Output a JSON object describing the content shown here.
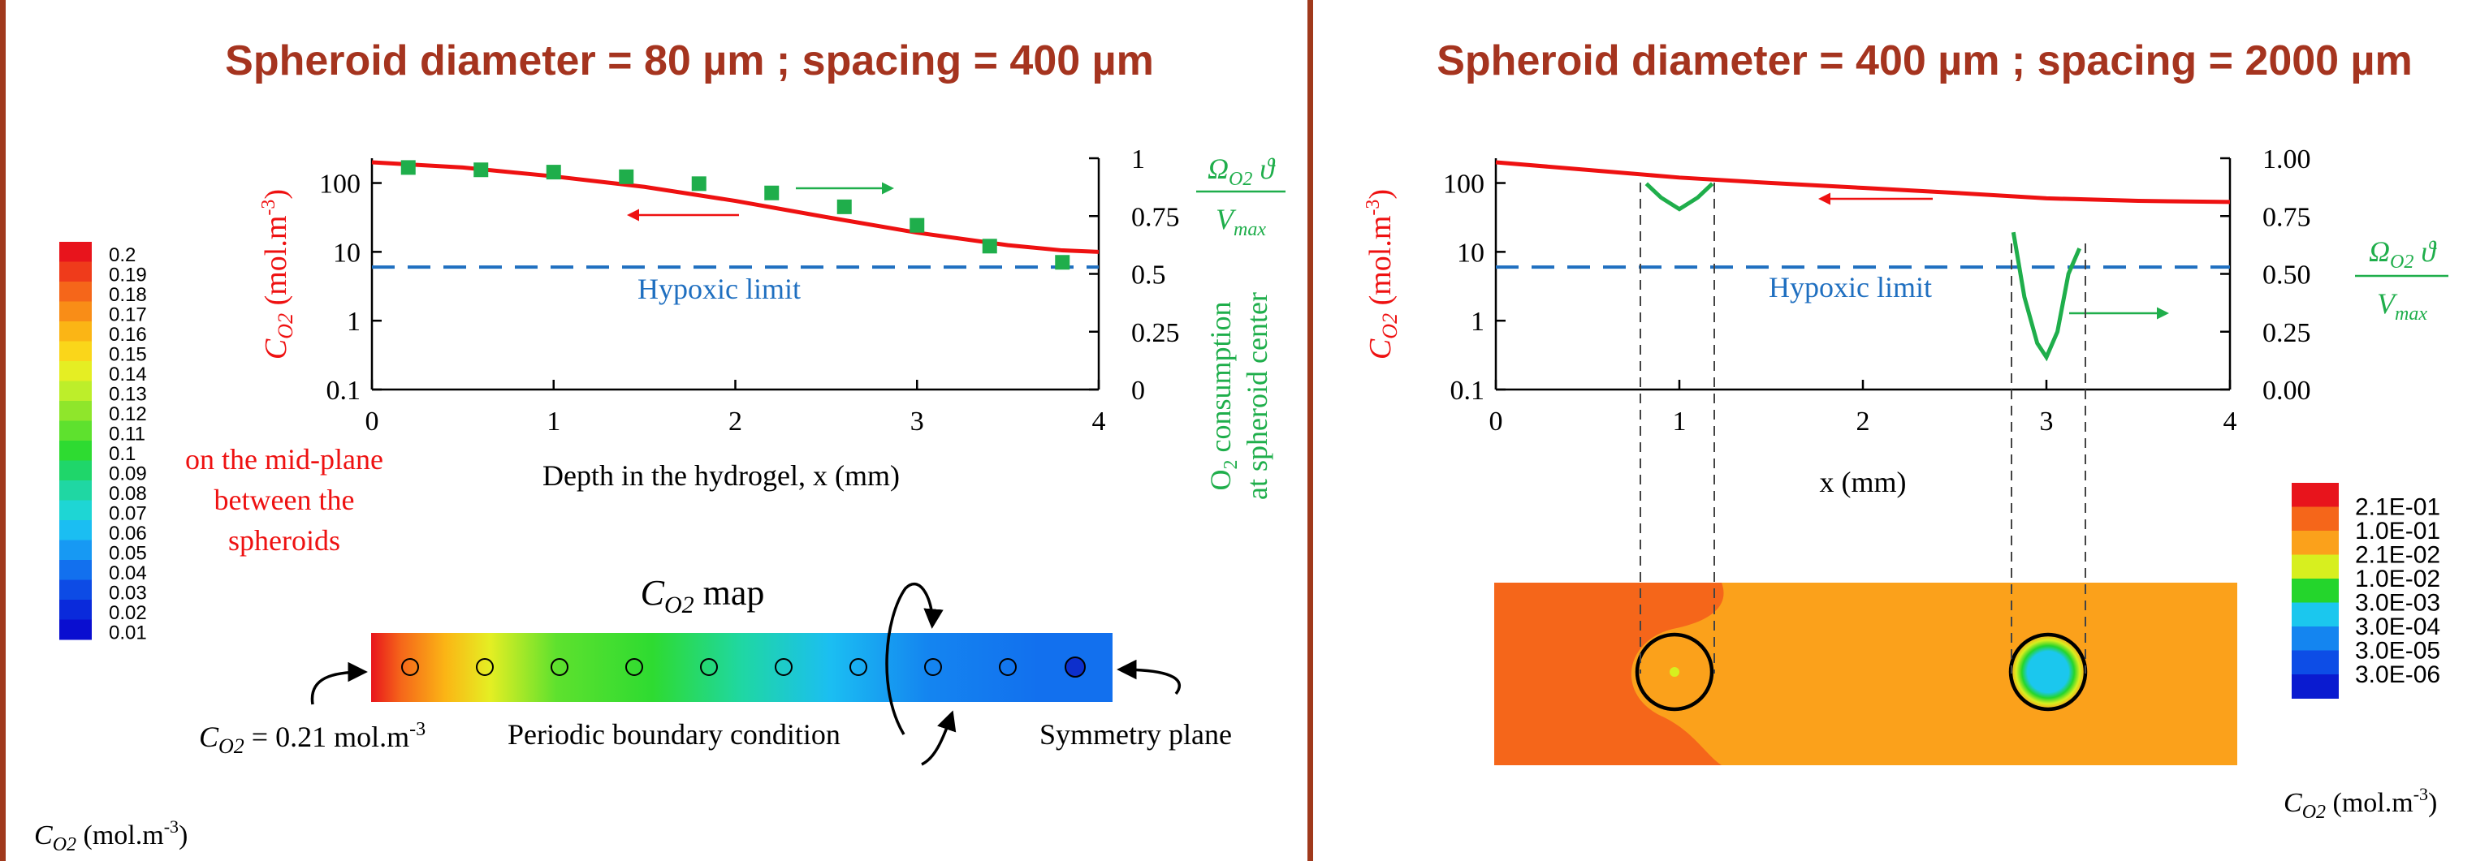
{
  "colors": {
    "title": "#a5341f",
    "divider": "#a0391c",
    "red_curve": "#ee1111",
    "green": "#1fae4b",
    "hypoxic_line": "#1f6fc0",
    "hypoxic_text": "#1f6fc0"
  },
  "left_panel": {
    "title": "Spheroid diameter = 80 µm ; spacing = 400 µm",
    "y_label_main": "C",
    "y_label_sub": "O2",
    "y_label_unit": " (mol.m",
    "y_label_exp": "-3",
    "y_label_close": ")",
    "x_label": "Depth in the hydrogel, x (mm)",
    "right_label_omega": "Ω",
    "right_label_omega_sub": "O2",
    "right_label_theta": " ϑ",
    "right_label_vmax": "V",
    "right_label_vmax_sub": "max",
    "o2_consumption_line1": "O",
    "o2_consumption_sub": "2",
    "o2_consumption_rest": " consumption",
    "o2_consumption_line2": "at spheroid center",
    "hypoxic_limit": "Hypoxic limit",
    "mid_plane_1": "on the mid-plane",
    "mid_plane_2": "between the",
    "mid_plane_3": "spheroids",
    "map_title_main": "C",
    "map_title_sub": "O2",
    "map_title_rest": " map",
    "boundary_c_main": "C",
    "boundary_c_sub": "O2",
    "boundary_c_rest": " = 0.21 mol.m",
    "boundary_c_exp": "-3",
    "periodic_boundary": "Periodic boundary condition",
    "symmetry_plane": "Symmetry plane",
    "colorbar_ticks": [
      "0.2",
      "0.19",
      "0.18",
      "0.17",
      "0.16",
      "0.15",
      "0.14",
      "0.13",
      "0.12",
      "0.11",
      "0.1",
      "0.09",
      "0.08",
      "0.07",
      "0.06",
      "0.05",
      "0.04",
      "0.03",
      "0.02",
      "0.01"
    ],
    "colorbar_colors": [
      "#e8141c",
      "#ef3b1b",
      "#f5661a",
      "#f98d17",
      "#fbb515",
      "#fad61a",
      "#e5ee23",
      "#bdee2a",
      "#8fe62b",
      "#5ee12e",
      "#2edb31",
      "#1fd66a",
      "#1fd7a3",
      "#1ed6d4",
      "#1bbef2",
      "#1799f3",
      "#1270ee",
      "#0d4be5",
      "#0a2adb",
      "#0a0ed0"
    ],
    "colorbar_label_main": "C",
    "colorbar_label_sub": "O2",
    "colorbar_label_rest": " (mol.m",
    "colorbar_label_exp": "-3",
    "colorbar_label_close": ")"
  },
  "right_panel": {
    "title": "Spheroid diameter = 400 µm ; spacing = 2000 µm",
    "y_label_main": "C",
    "y_label_sub": "O2",
    "y_label_unit": " (mol.m",
    "y_label_exp": "-3",
    "y_label_close": ")",
    "x_label": "x (mm)",
    "right_label_omega": "Ω",
    "right_label_omega_sub": "O2",
    "right_label_theta": " ϑ",
    "right_label_vmax": "V",
    "right_label_vmax_sub": "max",
    "hypoxic_limit": "Hypoxic limit",
    "colorbar_ticks": [
      "2.1E-01",
      "1.0E-01",
      "2.1E-02",
      "1.0E-02",
      "3.0E-03",
      "3.0E-04",
      "3.0E-05",
      "3.0E-06"
    ],
    "colorbar_colors": [
      "#e8141c",
      "#f5661a",
      "#fba11b",
      "#d7ef1f",
      "#24d52c",
      "#1bc7ee",
      "#1485f0",
      "#0d4de6",
      "#0a1bd0"
    ],
    "colorbar_label_main": "C",
    "colorbar_label_sub": "O2",
    "colorbar_label_rest": " (mol.m",
    "colorbar_label_exp": "-3",
    "colorbar_label_close": ")"
  },
  "chart_data": [
    {
      "type": "line",
      "title": "Spheroid diameter = 80 µm ; spacing = 400 µm",
      "xlabel": "Depth in the hydrogel, x (mm)",
      "ylabel": "C_O2 (mol.m-3)",
      "y2label": "Ω_O2 ϑ / V_max — O2 consumption at spheroid center",
      "xlim": [
        0,
        4
      ],
      "ylim": [
        0.1,
        200
      ],
      "yscale": "log",
      "y2lim": [
        0,
        1
      ],
      "x_ticks": [
        "0",
        "1",
        "2",
        "3",
        "4"
      ],
      "y_ticks": [
        "0.1",
        "1",
        "10",
        "100"
      ],
      "y2_ticks": [
        "0",
        "0.25",
        "0.5",
        "0.75",
        "1"
      ],
      "series": [
        {
          "axis": "left",
          "color": "#ee1111",
          "x": [
            0,
            0.5,
            1.0,
            1.5,
            2.0,
            2.5,
            3.0,
            3.5,
            3.8,
            4.0
          ],
          "values": [
            200,
            168,
            125,
            88,
            55,
            32,
            19,
            12.5,
            10.5,
            10
          ]
        },
        {
          "axis": "right",
          "marker": "square",
          "color": "#1fae4b",
          "x": [
            0.2,
            0.6,
            1.0,
            1.4,
            1.8,
            2.2,
            2.6,
            3.0,
            3.4,
            3.8
          ],
          "values": [
            0.96,
            0.95,
            0.94,
            0.92,
            0.89,
            0.85,
            0.79,
            0.71,
            0.62,
            0.55
          ]
        },
        {
          "name": "Hypoxic limit",
          "axis": "left",
          "dashed": true,
          "color": "#1f6fc0",
          "x": [
            0,
            4
          ],
          "values": [
            6,
            6
          ]
        }
      ]
    },
    {
      "type": "line",
      "title": "Spheroid diameter = 400 µm ; spacing = 2000 µm",
      "xlabel": "x (mm)",
      "ylabel": "C_O2 (mol.m-3)",
      "y2label": "Ω_O2 ϑ / V_max",
      "xlim": [
        0,
        4
      ],
      "ylim": [
        0.1,
        200
      ],
      "yscale": "log",
      "y2lim": [
        0,
        1
      ],
      "x_ticks": [
        "0",
        "1",
        "2",
        "3",
        "4"
      ],
      "y_ticks": [
        "0.1",
        "1",
        "10",
        "100"
      ],
      "y2_ticks": [
        "0.00",
        "0.25",
        "0.50",
        "0.75",
        "1.00"
      ],
      "series": [
        {
          "axis": "left",
          "color": "#ee1111",
          "x": [
            0,
            0.5,
            1.0,
            1.5,
            2.0,
            2.5,
            3.0,
            3.5,
            4.0
          ],
          "values": [
            200,
            155,
            120,
            100,
            85,
            72,
            60,
            55,
            53
          ]
        },
        {
          "axis": "right",
          "color": "#1fae4b",
          "x": [
            0.82,
            0.9,
            1.0,
            1.1,
            1.18
          ],
          "values": [
            0.89,
            0.83,
            0.78,
            0.83,
            0.89
          ]
        },
        {
          "axis": "right",
          "color": "#1fae4b",
          "x": [
            2.82,
            2.88,
            2.95,
            3.0,
            3.06,
            3.12,
            3.18
          ],
          "values": [
            0.68,
            0.4,
            0.2,
            0.14,
            0.25,
            0.5,
            0.61
          ]
        },
        {
          "name": "Hypoxic limit",
          "axis": "left",
          "dashed": true,
          "color": "#1f6fc0",
          "x": [
            0,
            4
          ],
          "values": [
            6,
            6
          ]
        }
      ]
    }
  ]
}
